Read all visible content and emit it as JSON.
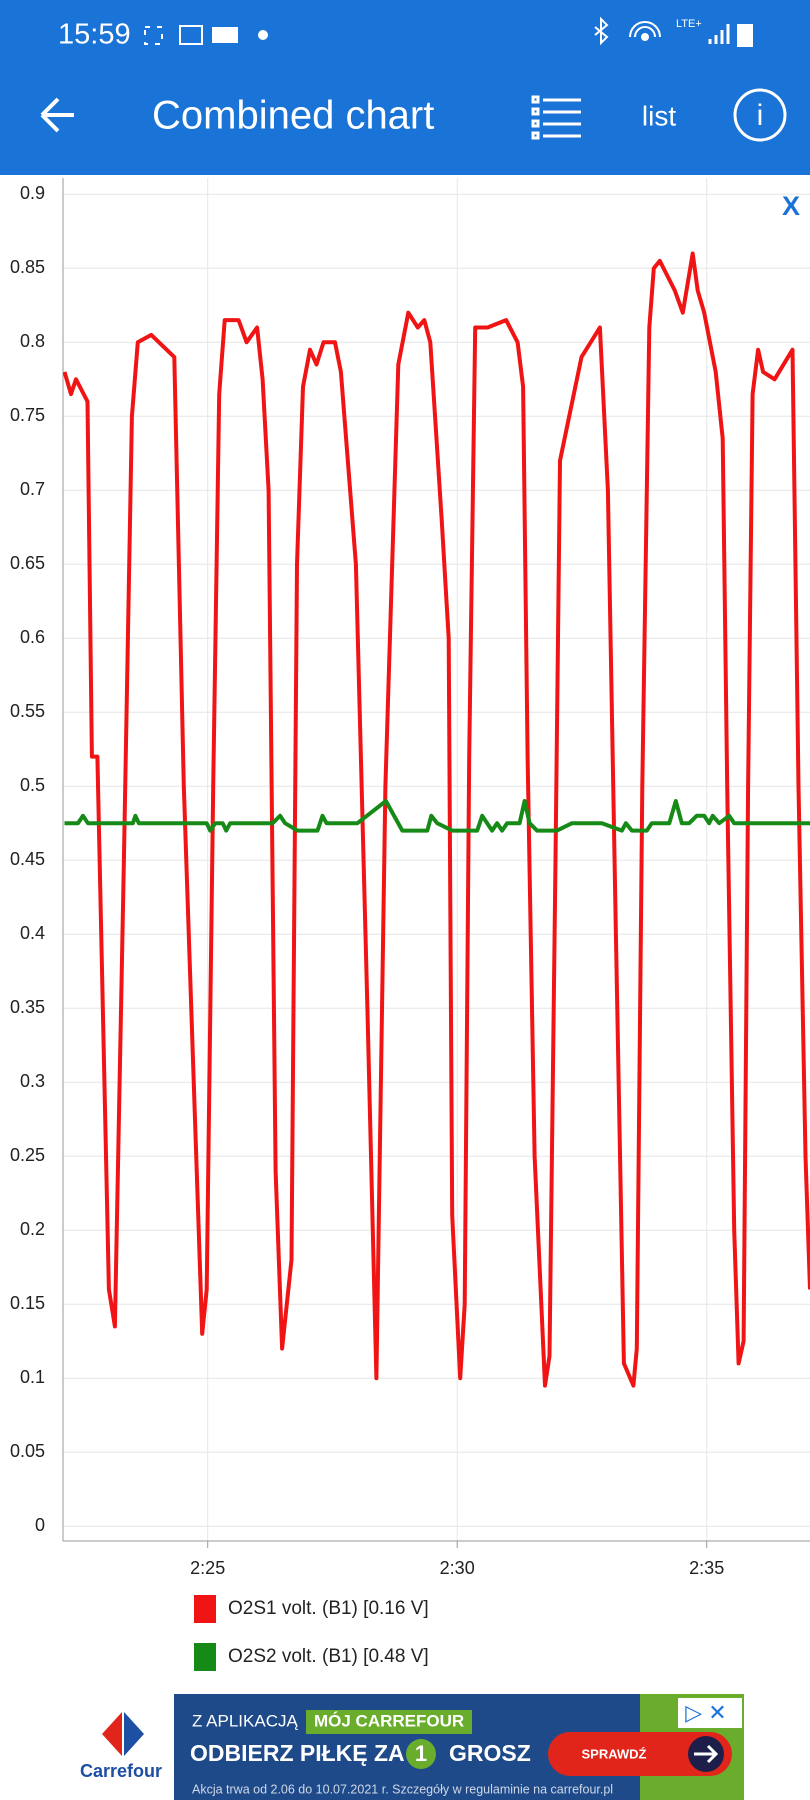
{
  "status_bar": {
    "time": "15:59",
    "network": "LTE+"
  },
  "app_bar": {
    "title": "Combined chart",
    "list_button": "list"
  },
  "close_chart": "X",
  "chart_data": {
    "type": "line",
    "xlim": [
      142.1,
      157.07
    ],
    "xticks": [
      {
        "value": 145,
        "label": "2:25"
      },
      {
        "value": 150,
        "label": "2:30"
      },
      {
        "value": 155,
        "label": "2:35"
      }
    ],
    "ylim": [
      -0.01,
      0.911
    ],
    "yticks": [
      0,
      0.05,
      0.1,
      0.15,
      0.2,
      0.25,
      0.3,
      0.35,
      0.4,
      0.45,
      0.5,
      0.55,
      0.6,
      0.65,
      0.7,
      0.75,
      0.8,
      0.85,
      0.9
    ],
    "grid": true,
    "series": [
      {
        "name": "O2S1 volt. (B1) [0.16 V]",
        "color": "#f01414",
        "x": [
          142.13,
          142.26,
          142.36,
          142.59,
          142.68,
          142.79,
          143.02,
          143.14,
          143.32,
          143.48,
          143.6,
          143.87,
          144.33,
          144.52,
          144.89,
          144.98,
          145.11,
          145.23,
          145.34,
          145.62,
          145.78,
          145.99,
          146.1,
          146.22,
          146.36,
          146.49,
          146.68,
          146.79,
          146.91,
          147.05,
          147.18,
          147.32,
          147.55,
          147.67,
          147.97,
          148.2,
          148.38,
          148.56,
          148.82,
          149.02,
          149.21,
          149.34,
          149.46,
          149.69,
          149.83,
          149.9,
          150.06,
          150.15,
          150.24,
          150.36,
          150.61,
          150.98,
          151.21,
          151.32,
          151.41,
          151.55,
          151.76,
          151.85,
          151.97,
          152.06,
          152.49,
          152.86,
          153.02,
          153.18,
          153.34,
          153.53,
          153.6,
          153.71,
          153.85,
          153.94,
          154.06,
          154.36,
          154.52,
          154.72,
          154.82,
          154.95,
          155.18,
          155.32,
          155.41,
          155.55,
          155.64,
          155.74,
          155.83,
          155.92,
          156.03,
          156.13,
          156.36,
          156.72,
          156.84,
          156.98,
          157.07
        ],
        "values": [
          0.78,
          0.765,
          0.775,
          0.76,
          0.52,
          0.52,
          0.16,
          0.135,
          0.45,
          0.75,
          0.8,
          0.805,
          0.79,
          0.5,
          0.13,
          0.16,
          0.5,
          0.765,
          0.815,
          0.815,
          0.8,
          0.81,
          0.775,
          0.7,
          0.24,
          0.12,
          0.18,
          0.65,
          0.77,
          0.795,
          0.785,
          0.8,
          0.8,
          0.78,
          0.65,
          0.35,
          0.1,
          0.5,
          0.785,
          0.82,
          0.81,
          0.815,
          0.8,
          0.68,
          0.6,
          0.21,
          0.1,
          0.15,
          0.52,
          0.81,
          0.81,
          0.815,
          0.8,
          0.77,
          0.52,
          0.25,
          0.095,
          0.115,
          0.45,
          0.72,
          0.79,
          0.81,
          0.7,
          0.4,
          0.11,
          0.095,
          0.12,
          0.5,
          0.81,
          0.85,
          0.855,
          0.835,
          0.82,
          0.86,
          0.835,
          0.82,
          0.78,
          0.735,
          0.5,
          0.2,
          0.11,
          0.125,
          0.5,
          0.765,
          0.795,
          0.78,
          0.775,
          0.795,
          0.5,
          0.25,
          0.16
        ]
      },
      {
        "name": "O2S2 volt. (B1) [0.48 V]",
        "color": "#168a16",
        "x": [
          142.13,
          142.4,
          142.5,
          142.6,
          143.5,
          143.55,
          143.62,
          144.98,
          145.05,
          145.15,
          145.3,
          145.37,
          145.45,
          146.3,
          146.45,
          146.55,
          146.8,
          147.2,
          147.3,
          147.38,
          148.0,
          148.57,
          148.9,
          149.4,
          149.48,
          149.6,
          149.9,
          150.4,
          150.5,
          150.7,
          150.8,
          150.9,
          151.0,
          151.25,
          151.35,
          151.45,
          151.6,
          152.0,
          152.3,
          152.9,
          153.3,
          153.38,
          153.5,
          153.8,
          153.9,
          154.25,
          154.38,
          154.5,
          154.65,
          154.8,
          154.95,
          155.05,
          155.12,
          155.25,
          155.45,
          155.55,
          157.07
        ],
        "values": [
          0.475,
          0.475,
          0.48,
          0.475,
          0.475,
          0.48,
          0.475,
          0.475,
          0.47,
          0.475,
          0.475,
          0.47,
          0.475,
          0.475,
          0.48,
          0.475,
          0.47,
          0.47,
          0.48,
          0.475,
          0.475,
          0.49,
          0.47,
          0.47,
          0.48,
          0.475,
          0.47,
          0.47,
          0.48,
          0.47,
          0.475,
          0.47,
          0.475,
          0.475,
          0.49,
          0.475,
          0.47,
          0.47,
          0.475,
          0.475,
          0.47,
          0.475,
          0.47,
          0.47,
          0.475,
          0.475,
          0.49,
          0.475,
          0.475,
          0.48,
          0.48,
          0.475,
          0.48,
          0.475,
          0.48,
          0.475,
          0.475
        ]
      }
    ]
  },
  "ad": {
    "brand": "Carrefour",
    "line1": "Z APLIKACJĄ",
    "app_name": "MÓJ CARREFOUR",
    "headline": "ODBIERZ PIŁKĘ ZA",
    "price": "1",
    "unit": "GROSZ",
    "cta": "SPRAWDŹ",
    "terms": "Akcja trwa od 2.06 do 10.07.2021 r. Szczegóły w regulaminie na carrefour.pl"
  }
}
